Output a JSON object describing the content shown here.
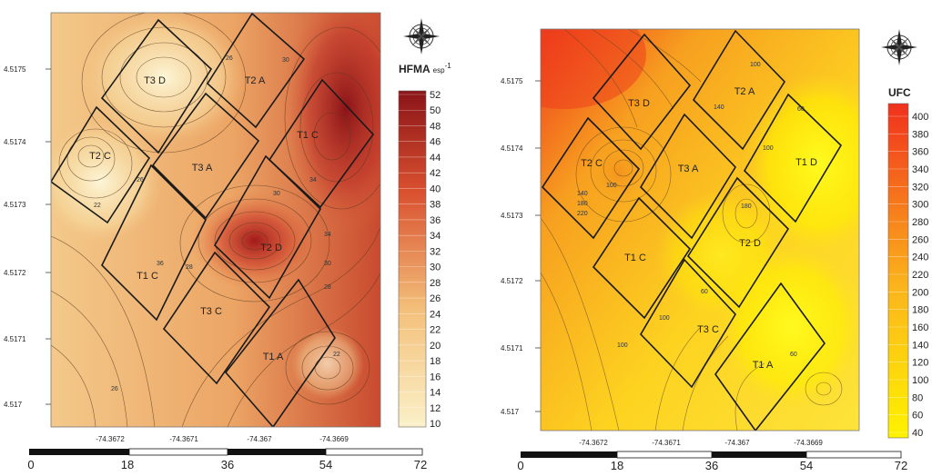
{
  "maps": [
    {
      "id": "left",
      "colorbar": {
        "title": "HFMA",
        "title_sub": "esp",
        "title_sup": "-1",
        "ticks": [
          "52",
          "50",
          "48",
          "46",
          "44",
          "42",
          "40",
          "38",
          "36",
          "34",
          "32",
          "30",
          "28",
          "26",
          "24",
          "22",
          "20",
          "18",
          "16",
          "14",
          "12",
          "10"
        ],
        "color_low": "#fbf1c9",
        "color_high": "#8a1418"
      },
      "y_ticks": [
        "4.5175",
        "4.5174",
        "4.5173",
        "4.5172",
        "4.5171",
        "4.517"
      ],
      "x_ticks": [
        "-74.3672",
        "-74.3671",
        "-74.367",
        "-74.3669"
      ],
      "plots": [
        "T3 D",
        "T2 A",
        "T2 C",
        "T3 A",
        "T1 C",
        "T1 C",
        "T2 D",
        "T3 C",
        "T1 A"
      ],
      "contour_labels": [
        "22",
        "26",
        "30",
        "34",
        "36",
        "28",
        "26",
        "34",
        "22",
        "30",
        "28",
        "26",
        "30"
      ],
      "scale_ticks": [
        "0",
        "18",
        "36",
        "54",
        "72"
      ]
    },
    {
      "id": "right",
      "colorbar": {
        "title": "UFC",
        "title_sub": "",
        "title_sup": "",
        "ticks": [
          "400",
          "380",
          "360",
          "340",
          "320",
          "300",
          "280",
          "260",
          "240",
          "220",
          "200",
          "180",
          "160",
          "140",
          "120",
          "100",
          "80",
          "60",
          "40"
        ],
        "color_low": "#fef200",
        "color_high": "#f0311c"
      },
      "y_ticks": [
        "4.5175",
        "4.5174",
        "4.5173",
        "4.5172",
        "4.5171",
        "4.517"
      ],
      "x_ticks": [
        "-74.3672",
        "-74.3671",
        "-74.367",
        "-74.3669"
      ],
      "plots": [
        "T3 D",
        "T2 A",
        "T2 C",
        "T3 A",
        "T1 D",
        "T2 D",
        "T1 C",
        "T3 C",
        "T1 A"
      ],
      "contour_labels": [
        "100",
        "140",
        "180",
        "220",
        "100",
        "140",
        "180",
        "100",
        "60",
        "60",
        "100",
        "60",
        "100"
      ],
      "scale_ticks": [
        "0",
        "18",
        "36",
        "54",
        "72"
      ]
    }
  ],
  "icons": [
    "compass-rose-icon"
  ]
}
